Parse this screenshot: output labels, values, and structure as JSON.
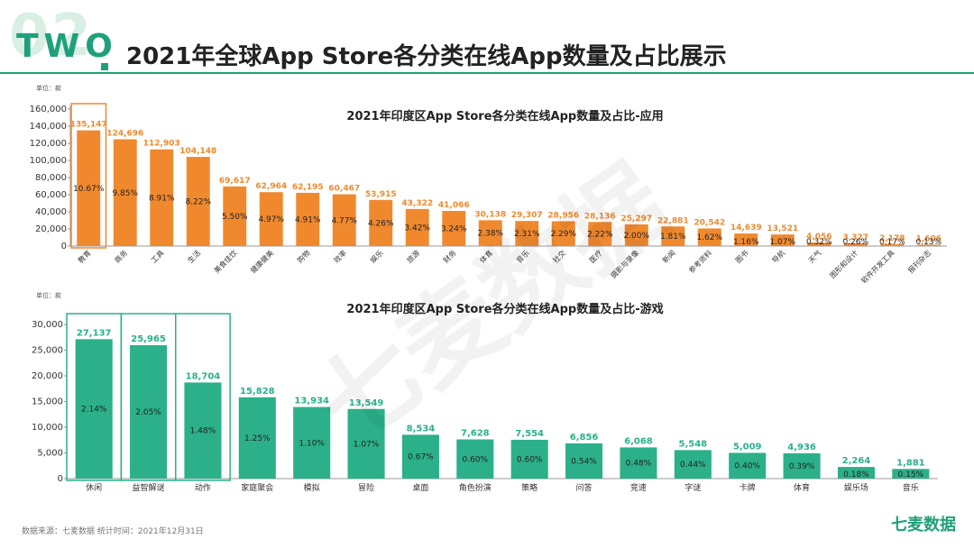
{
  "header": {
    "logo_bg": "02",
    "logo": "TWO",
    "title": "2021年全球App Store各分类在线App数量及占比展示"
  },
  "watermark": "七麦数据",
  "footer": {
    "source": "数据来源：七麦数据  统计时间：2021年12月31日",
    "brand": "七麦数据"
  },
  "colors": {
    "accent": "#1fa07a",
    "orange": "#f0892e",
    "green": "#2bb08a"
  },
  "chart_data": [
    {
      "type": "bar",
      "title": "2021年印度区App Store各分类在线App数量及占比-应用",
      "unit_label": "单位：款",
      "categories": [
        "教育",
        "商务",
        "工具",
        "生活",
        "美食佳饮",
        "健康健美",
        "购物",
        "效率",
        "娱乐",
        "旅游",
        "财务",
        "体育",
        "音乐",
        "社交",
        "医疗",
        "摄影与录像",
        "新闻",
        "参考资料",
        "图书",
        "导航",
        "天气",
        "图形和设计",
        "软件开发工具",
        "报刊杂志"
      ],
      "values": [
        135147,
        124696,
        112903,
        104148,
        69617,
        62964,
        62195,
        60467,
        53915,
        43322,
        41066,
        30138,
        29307,
        28956,
        28136,
        25297,
        22881,
        20542,
        14639,
        13521,
        4056,
        3327,
        2178,
        1606
      ],
      "value_labels": [
        "135,147",
        "124,696",
        "112,903",
        "104,148",
        "69,617",
        "62,964",
        "62,195",
        "60,467",
        "53,915",
        "43,322",
        "41,066",
        "30,138",
        "29,307",
        "28,956",
        "28,136",
        "25,297",
        "22,881",
        "20,542",
        "14,639",
        "13,521",
        "4,056",
        "3,327",
        "2,178",
        "1,606"
      ],
      "percent_labels": [
        "10.67%",
        "9.85%",
        "8.91%",
        "8.22%",
        "5.50%",
        "4.97%",
        "4.91%",
        "4.77%",
        "4.26%",
        "3.42%",
        "3.24%",
        "2.38%",
        "2.31%",
        "2.29%",
        "2.22%",
        "2.00%",
        "1.81%",
        "1.62%",
        "1.16%",
        "1.07%",
        "0.32%",
        "0.26%",
        "0.17%",
        "0.13%"
      ],
      "ylim": [
        0,
        160000
      ],
      "yticks": [
        "0",
        "20,000",
        "40,000",
        "60,000",
        "80,000",
        "100,000",
        "120,000",
        "140,000",
        "160,000"
      ],
      "highlighted": [
        "教育"
      ],
      "color": "#f0892e"
    },
    {
      "type": "bar",
      "title": "2021年印度区App Store各分类在线App数量及占比-游戏",
      "unit_label": "单位：款",
      "categories": [
        "休闲",
        "益智解谜",
        "动作",
        "家庭聚会",
        "模拟",
        "冒险",
        "桌面",
        "角色扮演",
        "策略",
        "问答",
        "竞速",
        "字谜",
        "卡牌",
        "体育",
        "娱乐场",
        "音乐"
      ],
      "values": [
        27137,
        25965,
        18704,
        15828,
        13934,
        13549,
        8534,
        7628,
        7554,
        6856,
        6068,
        5548,
        5009,
        4936,
        2264,
        1881
      ],
      "value_labels": [
        "27,137",
        "25,965",
        "18,704",
        "15,828",
        "13,934",
        "13,549",
        "8,534",
        "7,628",
        "7,554",
        "6,856",
        "6,068",
        "5,548",
        "5,009",
        "4,936",
        "2,264",
        "1,881"
      ],
      "percent_labels": [
        "2.14%",
        "2.05%",
        "1.48%",
        "1.25%",
        "1.10%",
        "1.07%",
        "0.67%",
        "0.60%",
        "0.60%",
        "0.54%",
        "0.48%",
        "0.44%",
        "0.40%",
        "0.39%",
        "0.18%",
        "0.15%"
      ],
      "ylim": [
        0,
        30000
      ],
      "yticks": [
        "0",
        "5,000",
        "10,000",
        "15,000",
        "20,000",
        "25,000",
        "30,000"
      ],
      "highlighted": [
        "休闲",
        "益智解谜",
        "动作"
      ],
      "color": "#2bb08a"
    }
  ]
}
